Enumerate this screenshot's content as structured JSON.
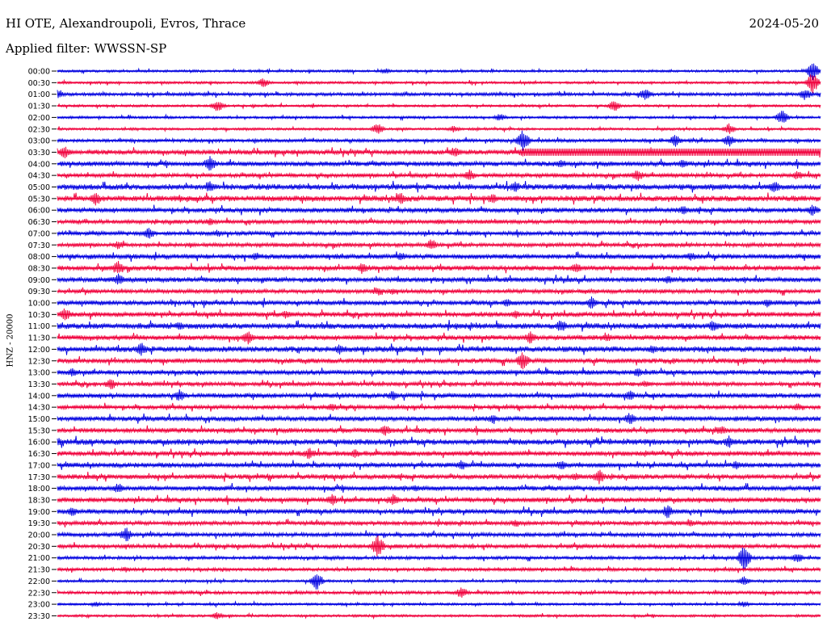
{
  "header": {
    "station": "HI OTE, Alexandroupoli, Evros, Thrace",
    "date": "2024-05-20",
    "filter": "Applied filter: WWSSN-SP"
  },
  "axis_label": "HNZ - 20000",
  "colors": {
    "even_trace": "#0000e0",
    "odd_trace": "#f0003c"
  },
  "chart_data": {
    "type": "line",
    "title": "HI OTE, Alexandroupoli, Evros, Thrace",
    "subtitle": "Applied filter: WWSSN-SP",
    "date": "2024-05-20",
    "ylabel": "HNZ - 20000",
    "xlabel": "",
    "row_labels": [
      "00:00",
      "00:30",
      "01:00",
      "01:30",
      "02:00",
      "02:30",
      "03:00",
      "03:30",
      "04:00",
      "04:30",
      "05:00",
      "05:30",
      "06:00",
      "06:30",
      "07:00",
      "07:30",
      "08:00",
      "08:30",
      "09:00",
      "09:30",
      "10:00",
      "10:30",
      "11:00",
      "11:30",
      "12:00",
      "12:30",
      "13:00",
      "13:30",
      "14:00",
      "14:30",
      "15:00",
      "15:30",
      "16:00",
      "16:30",
      "17:00",
      "17:30",
      "18:00",
      "18:30",
      "19:00",
      "19:30",
      "20:00",
      "20:30",
      "21:00",
      "21:30",
      "22:00",
      "22:30",
      "23:00",
      "23:30"
    ],
    "series_colors": [
      "#0000e0",
      "#f0003c"
    ],
    "noise_level": [
      1.5,
      1.5,
      2,
      1.5,
      1.5,
      1.5,
      2,
      3,
      3,
      2.5,
      3.5,
      3.5,
      3,
      2.5,
      2.5,
      2.5,
      3,
      3,
      3,
      2.5,
      3,
      3,
      3.5,
      3,
      3.5,
      3,
      3,
      2.5,
      3,
      2.5,
      3,
      3,
      3.5,
      3,
      3,
      3,
      3,
      3,
      3,
      2.5,
      2.5,
      2.5,
      2,
      2,
      1.5,
      2,
      1.5,
      1.5
    ],
    "events": [
      [
        [
          0.43,
          4
        ],
        [
          0.99,
          12
        ]
      ],
      [
        [
          0.27,
          6
        ],
        [
          0.99,
          14
        ]
      ],
      [
        [
          0.0,
          8
        ],
        [
          0.77,
          8
        ],
        [
          0.98,
          8
        ]
      ],
      [
        [
          0.21,
          8
        ],
        [
          0.73,
          8
        ]
      ],
      [
        [
          0.58,
          5
        ],
        [
          0.95,
          10
        ]
      ],
      [
        [
          0.42,
          8
        ],
        [
          0.52,
          5
        ],
        [
          0.88,
          7
        ]
      ],
      [
        [
          0.61,
          14
        ],
        [
          0.81,
          8
        ],
        [
          0.88,
          8
        ]
      ],
      [
        [
          0.01,
          8
        ],
        [
          0.52,
          7
        ],
        [
          0.61,
          6
        ]
      ],
      [
        [
          0.2,
          10
        ],
        [
          0.66,
          6
        ],
        [
          0.82,
          6
        ]
      ],
      [
        [
          0.54,
          8
        ],
        [
          0.76,
          8
        ],
        [
          0.97,
          6
        ]
      ],
      [
        [
          0.2,
          8
        ],
        [
          0.6,
          8
        ],
        [
          0.94,
          8
        ]
      ],
      [
        [
          0.05,
          9
        ],
        [
          0.45,
          8
        ],
        [
          0.57,
          7
        ]
      ],
      [
        [
          0.82,
          6
        ],
        [
          0.99,
          8
        ]
      ],
      [
        [
          0.2,
          5
        ],
        [
          0.5,
          4
        ]
      ],
      [
        [
          0.12,
          8
        ],
        [
          0.21,
          5
        ]
      ],
      [
        [
          0.08,
          6
        ],
        [
          0.49,
          8
        ]
      ],
      [
        [
          0.26,
          6
        ],
        [
          0.45,
          6
        ],
        [
          0.83,
          6
        ]
      ],
      [
        [
          0.08,
          10
        ],
        [
          0.4,
          8
        ],
        [
          0.68,
          7
        ]
      ],
      [
        [
          0.08,
          8
        ],
        [
          0.8,
          6
        ]
      ],
      [
        [
          0.42,
          6
        ],
        [
          0.44,
          5
        ]
      ],
      [
        [
          0.59,
          6
        ],
        [
          0.7,
          8
        ],
        [
          0.93,
          6
        ]
      ],
      [
        [
          0.01,
          9
        ],
        [
          0.3,
          6
        ],
        [
          0.6,
          6
        ]
      ],
      [
        [
          0.16,
          6
        ],
        [
          0.66,
          9
        ],
        [
          0.86,
          8
        ]
      ],
      [
        [
          0.25,
          9
        ],
        [
          0.62,
          8
        ],
        [
          0.72,
          6
        ]
      ],
      [
        [
          0.11,
          9
        ],
        [
          0.37,
          7
        ],
        [
          0.78,
          6
        ]
      ],
      [
        [
          0.61,
          13
        ],
        [
          0.9,
          5
        ]
      ],
      [
        [
          0.02,
          6
        ],
        [
          0.76,
          6
        ]
      ],
      [
        [
          0.07,
          8
        ],
        [
          0.77,
          5
        ]
      ],
      [
        [
          0.16,
          8
        ],
        [
          0.44,
          7
        ],
        [
          0.75,
          7
        ]
      ],
      [
        [
          0.36,
          6
        ],
        [
          0.97,
          5
        ]
      ],
      [
        [
          0.57,
          6
        ],
        [
          0.75,
          8
        ]
      ],
      [
        [
          0.43,
          7
        ],
        [
          0.87,
          7
        ]
      ],
      [
        [
          0.0,
          6
        ],
        [
          0.88,
          8
        ]
      ],
      [
        [
          0.33,
          8
        ],
        [
          0.39,
          6
        ]
      ],
      [
        [
          0.53,
          7
        ],
        [
          0.66,
          7
        ],
        [
          0.89,
          6
        ]
      ],
      [
        [
          0.68,
          6
        ],
        [
          0.71,
          10
        ]
      ],
      [
        [
          0.08,
          7
        ],
        [
          0.47,
          5
        ]
      ],
      [
        [
          0.36,
          8
        ],
        [
          0.44,
          8
        ]
      ],
      [
        [
          0.02,
          6
        ],
        [
          0.8,
          9
        ]
      ],
      [
        [
          0.6,
          5
        ],
        [
          0.83,
          5
        ]
      ],
      [
        [
          0.09,
          10
        ]
      ],
      [
        [
          0.42,
          14
        ]
      ],
      [
        [
          0.9,
          16
        ],
        [
          0.97,
          7
        ]
      ],
      [
        [
          0.09,
          4
        ]
      ],
      [
        [
          0.34,
          12
        ],
        [
          0.9,
          6
        ]
      ],
      [
        [
          0.53,
          8
        ]
      ],
      [
        [
          0.05,
          4
        ],
        [
          0.9,
          4
        ]
      ],
      [
        [
          0.21,
          5
        ]
      ]
    ],
    "saturated_band": {
      "row": 7,
      "x_start": 0.61,
      "x_end": 1.0
    }
  }
}
